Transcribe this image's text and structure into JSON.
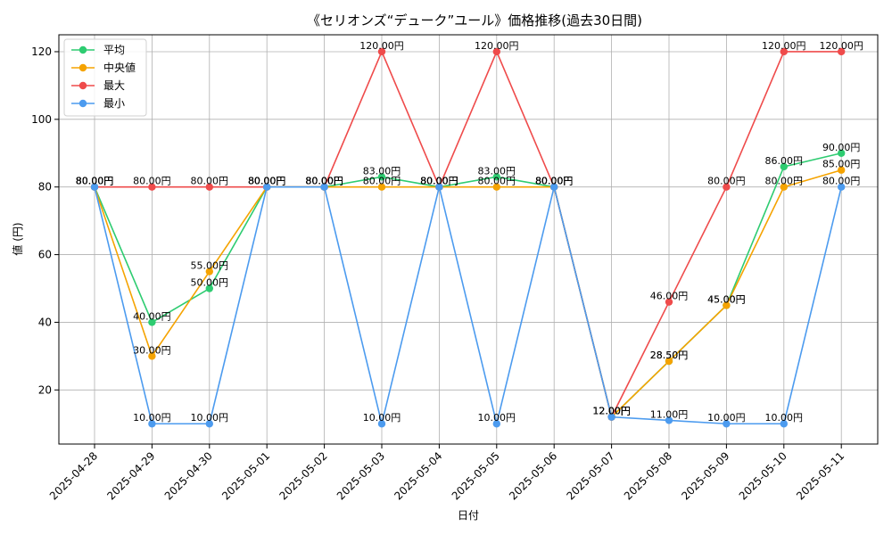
{
  "chart_data": {
    "type": "line",
    "title": "《セリオンズ“デューク”ユール》価格推移(過去30日間)",
    "xlabel": "日付",
    "ylabel": "値 (円)",
    "ylim": [
      4,
      125
    ],
    "yticks": [
      20,
      40,
      60,
      80,
      100,
      120
    ],
    "grid": true,
    "legend_position": "top-left",
    "value_suffix": "円",
    "categories": [
      "2025-04-28",
      "2025-04-29",
      "2025-04-30",
      "2025-05-01",
      "2025-05-02",
      "2025-05-03",
      "2025-05-04",
      "2025-05-05",
      "2025-05-06",
      "2025-05-07",
      "2025-05-08",
      "2025-05-09",
      "2025-05-10",
      "2025-05-11"
    ],
    "series": [
      {
        "name": "平均",
        "color": "#2ecc71",
        "values": [
          80,
          40,
          50,
          80,
          80,
          83,
          80,
          83,
          80,
          12,
          28.5,
          45,
          86,
          90
        ]
      },
      {
        "name": "中央値",
        "color": "#f5a300",
        "values": [
          80,
          30,
          55,
          80,
          80,
          80,
          80,
          80,
          80,
          12,
          28.5,
          45,
          80,
          85
        ]
      },
      {
        "name": "最大",
        "color": "#ef4b4b",
        "values": [
          80,
          80,
          80,
          80,
          80,
          120,
          80,
          120,
          80,
          12,
          46,
          80,
          120,
          120
        ]
      },
      {
        "name": "最小",
        "color": "#4c9bef",
        "values": [
          80,
          10,
          10,
          80,
          80,
          10,
          80,
          10,
          80,
          12,
          11,
          10,
          10,
          80
        ]
      }
    ]
  }
}
